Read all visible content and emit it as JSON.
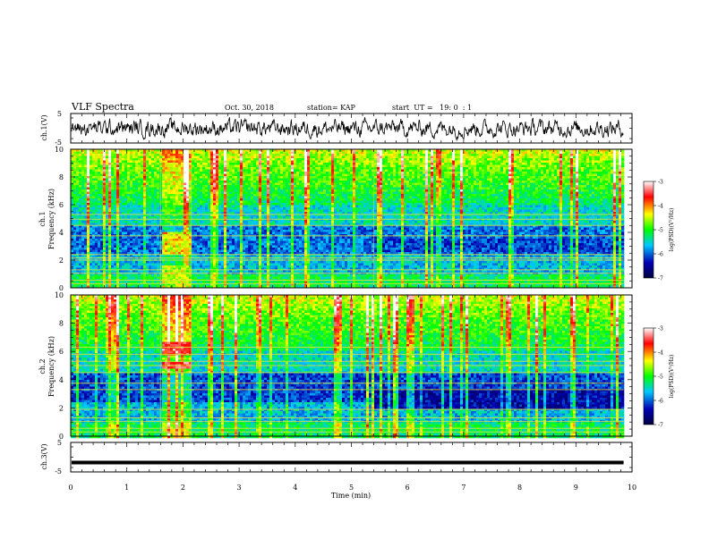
{
  "header": {
    "title": "VLF Spectra",
    "date": "Oct. 30, 2018",
    "station": "station= KAP",
    "start_ut": "start  UT =   19: 0  : 1"
  },
  "colorbar": {
    "label": "log(PSD)(V²/Hz)",
    "ticks": [
      "-3",
      "-4",
      "-5",
      "-6",
      "-7"
    ],
    "vmin": -7,
    "vmax": -3,
    "colors": [
      "#ffffff",
      "#ff0000",
      "#ffff00",
      "#00ff00",
      "#00c8ff",
      "#0000b4",
      "#000040"
    ]
  },
  "chart_data": {
    "type": "heatmap",
    "xlabel": "Time (min)",
    "xlim": [
      0,
      10
    ],
    "x_ticks": [
      "0",
      "1",
      "2",
      "3",
      "4",
      "5",
      "6",
      "7",
      "8",
      "9",
      "10"
    ],
    "panels": [
      {
        "kind": "waveform",
        "ylabel": "ch.1(V)",
        "ylim": [
          -5,
          5
        ],
        "y_ticks": [
          "5",
          "-5"
        ]
      },
      {
        "kind": "spectrogram",
        "ylabel_top": "ch.1",
        "ylabel": "Frequency (kHz)",
        "ylim": [
          0,
          10
        ],
        "y_ticks": [
          "0",
          "2",
          "4",
          "6",
          "8",
          "10"
        ],
        "data_end_min": 9.85,
        "segment_breaks_min": [
          1.6,
          2.15,
          5.4
        ],
        "emission_line_khz": [
          0.3,
          0.55,
          1.05,
          1.3,
          2.0,
          2.15,
          2.4,
          3.75,
          4.5,
          4.95,
          5.3
        ]
      },
      {
        "kind": "spectrogram",
        "ylabel_top": "ch.2",
        "ylabel": "Frequency (kHz)",
        "ylim": [
          0,
          10
        ],
        "y_ticks": [
          "0",
          "2",
          "4",
          "6",
          "8",
          "10"
        ],
        "data_end_min": 9.85,
        "segment_breaks_min": [
          1.6,
          2.15,
          5.4
        ],
        "emission_line_khz": [
          0.3,
          0.55,
          1.05,
          1.3,
          1.9,
          3.3,
          3.75,
          4.5,
          5.0,
          5.3,
          5.8,
          6.3
        ]
      },
      {
        "kind": "waveform",
        "ylabel": "ch.3(V)",
        "ylim": [
          -5,
          5
        ],
        "y_ticks": [
          "5",
          "-5"
        ],
        "constant_value_v": -1.8,
        "data_end_min": 9.85
      }
    ]
  }
}
